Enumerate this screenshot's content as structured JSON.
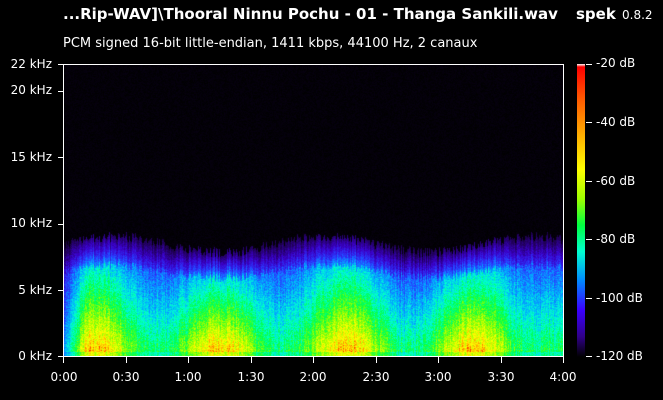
{
  "window": {
    "title": "...Rip-WAV]\\Thooral Ninnu Pochu - 01 - Thanga Sankili.wav",
    "app_name": "spek",
    "app_version": "0.8.2"
  },
  "file_info": "PCM signed 16-bit little-endian, 1411 kbps, 44100 Hz, 2 canaux",
  "frequency_axis": {
    "ticks": [
      "22 kHz",
      "20 kHz",
      "15 kHz",
      "10 kHz",
      "5 kHz",
      "0 kHz"
    ]
  },
  "time_axis": {
    "ticks": [
      "0:00",
      "0:30",
      "1:00",
      "1:30",
      "2:00",
      "2:30",
      "3:00",
      "3:30",
      "4:00"
    ]
  },
  "db_scale": {
    "ticks": [
      "-20 dB",
      "-40 dB",
      "-60 dB",
      "-80 dB",
      "-100 dB",
      "-120 dB"
    ],
    "colors": [
      "#ffffff",
      "#ff0000",
      "#ff8000",
      "#ffff00",
      "#00ff40",
      "#00c0ff",
      "#3a00ff",
      "#30008a",
      "#000000"
    ]
  }
}
